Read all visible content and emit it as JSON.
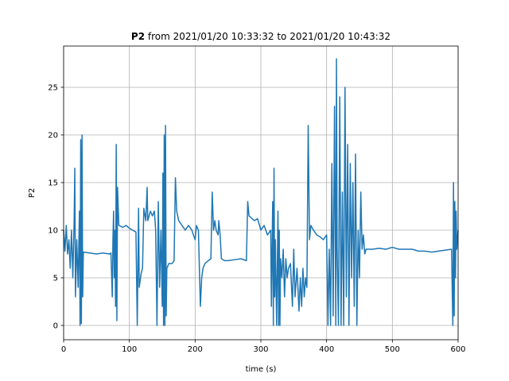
{
  "chart_data": {
    "type": "line",
    "title_bold": "P2",
    "title": "from 2021/01/20 10:33:32 to 2021/01/20 10:43:32",
    "xlabel": "time (s)",
    "ylabel": "P2",
    "xlim": [
      0,
      600
    ],
    "ylim": [
      -1.5,
      29.33
    ],
    "xticks": [
      0,
      100,
      200,
      300,
      400,
      500,
      600
    ],
    "yticks": [
      0,
      5,
      10,
      15,
      20,
      25
    ],
    "grid": true,
    "x": [
      0,
      2,
      4,
      6,
      8,
      10,
      12,
      14,
      16,
      17,
      18,
      20,
      22,
      24,
      25,
      26,
      27,
      28,
      29,
      30,
      40,
      50,
      60,
      70,
      72,
      74,
      75,
      76,
      77,
      78,
      79,
      80,
      81,
      82,
      84,
      90,
      95,
      100,
      105,
      110,
      112,
      114,
      115,
      118,
      120,
      122,
      125,
      127,
      128,
      132,
      135,
      138,
      140,
      142,
      144,
      146,
      148,
      150,
      151,
      152,
      153,
      154,
      155,
      156,
      157,
      160,
      165,
      168,
      170,
      172,
      175,
      180,
      185,
      190,
      195,
      200,
      202,
      205,
      208,
      210,
      212,
      215,
      220,
      224,
      226,
      228,
      230,
      232,
      235,
      236,
      238,
      240,
      245,
      250,
      260,
      270,
      278,
      280,
      282,
      290,
      295,
      300,
      305,
      310,
      315,
      316,
      318,
      319,
      320,
      321,
      322,
      324,
      326,
      327,
      328,
      329,
      330,
      332,
      334,
      336,
      338,
      340,
      342,
      345,
      348,
      350,
      352,
      355,
      358,
      360,
      362,
      364,
      366,
      368,
      370,
      372,
      374,
      376,
      380,
      385,
      390,
      395,
      400,
      402,
      404,
      406,
      408,
      410,
      412,
      414,
      415,
      416,
      418,
      420,
      422,
      424,
      426,
      428,
      430,
      432,
      434,
      436,
      438,
      440,
      442,
      444,
      446,
      448,
      450,
      452,
      454,
      456,
      458,
      460,
      470,
      480,
      490,
      500,
      510,
      520,
      530,
      540,
      550,
      560,
      570,
      590,
      592,
      593,
      594,
      595,
      596,
      597,
      598,
      600
    ],
    "series": [
      {
        "name": "P2",
        "color": "#1f77b4",
        "values": [
          10,
          7.8,
          10.5,
          7.5,
          9,
          6,
          10,
          5,
          11,
          16.5,
          3,
          9,
          4,
          12,
          0,
          19.5,
          0.2,
          20,
          3,
          7.7,
          7.6,
          7.5,
          7.6,
          7.5,
          7.6,
          3,
          9,
          12,
          5,
          10,
          2,
          19,
          0.5,
          14.5,
          10.5,
          10.3,
          10.5,
          10.2,
          10,
          9.8,
          0,
          12.3,
          4,
          5.5,
          6,
          12.3,
          11,
          14.5,
          11,
          12,
          11.5,
          12,
          10,
          0,
          13,
          4,
          10,
          2,
          16,
          0,
          20,
          0,
          21,
          1,
          6,
          6.5,
          6.5,
          6.8,
          15.5,
          12,
          11,
          10.5,
          10,
          10.5,
          10,
          9,
          10.5,
          10,
          2,
          5,
          6,
          6.5,
          6.8,
          7,
          14,
          10,
          11,
          10,
          9.5,
          11,
          9.5,
          7,
          6.8,
          6.8,
          6.9,
          7,
          6.8,
          13,
          11.5,
          11,
          11.2,
          10,
          10.5,
          9.5,
          10,
          2,
          13,
          0,
          16.5,
          3,
          9,
          0,
          12,
          0,
          10,
          0,
          7,
          5,
          8,
          3,
          7,
          5,
          6,
          6.5,
          2,
          8,
          3,
          6,
          1.5,
          5,
          2,
          6,
          3,
          5,
          4,
          21,
          9,
          10.5,
          10,
          9.5,
          9.3,
          9,
          9.5,
          0,
          8,
          0,
          17,
          1,
          23,
          0,
          28,
          8,
          0,
          24,
          0,
          14,
          0,
          25,
          3,
          19,
          0,
          17,
          5,
          15,
          2,
          18,
          0,
          10,
          5,
          14,
          8,
          9.5,
          7.5,
          8,
          8,
          8.1,
          8,
          8.2,
          8,
          8,
          8,
          7.8,
          7.8,
          7.7,
          7.8,
          8,
          0,
          15,
          1,
          13,
          5,
          12,
          8,
          10
        ]
      }
    ]
  }
}
